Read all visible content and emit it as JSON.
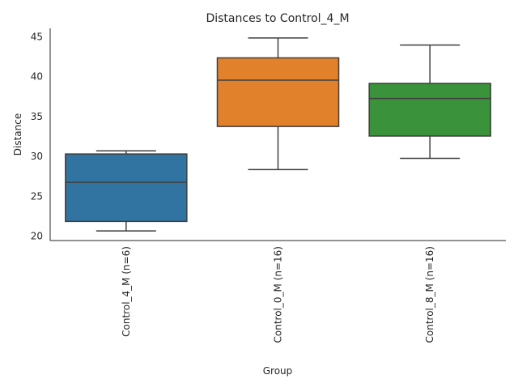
{
  "chart_data": {
    "type": "box",
    "title": "Distances to Control_4_M",
    "xlabel": "Group",
    "ylabel": "Distance",
    "ylim": [
      19.4,
      46.0
    ],
    "yticks": [
      20,
      25,
      30,
      35,
      40,
      45
    ],
    "grid": false,
    "categories": [
      "Control_4_M (n=6)",
      "Control_0_M (n=16)",
      "Control_8_M (n=16)"
    ],
    "boxes": [
      {
        "whislo": 20.6,
        "q1": 21.8,
        "med": 26.7,
        "q3": 30.25,
        "whishi": 30.65,
        "color": "#3274a1"
      },
      {
        "whislo": 28.3,
        "q1": 33.7,
        "med": 39.5,
        "q3": 42.3,
        "whishi": 44.8,
        "color": "#e1812c"
      },
      {
        "whislo": 29.7,
        "q1": 32.5,
        "med": 37.2,
        "q3": 39.1,
        "whishi": 43.9,
        "color": "#3a923a"
      }
    ]
  }
}
